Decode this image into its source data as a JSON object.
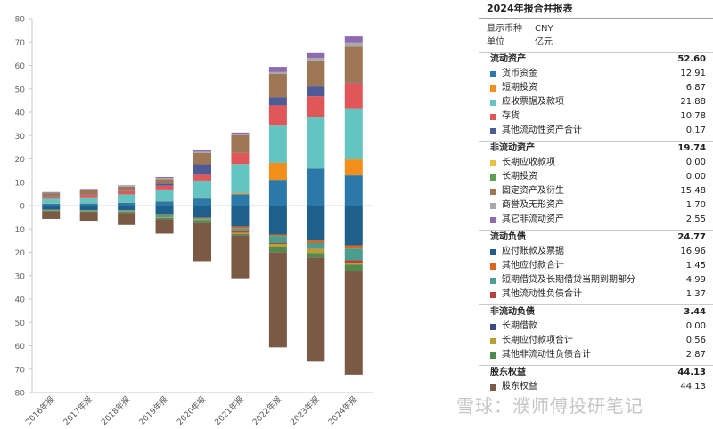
{
  "chart_data": {
    "type": "bar",
    "stacked": true,
    "diverging": true,
    "categories": [
      "2016年报",
      "2017年报",
      "2018年报",
      "2019年报",
      "2020年报",
      "2021年报",
      "2022年报",
      "2023年报",
      "2024年报"
    ],
    "ylim": [
      -80,
      80
    ],
    "yticks": [
      80,
      70,
      60,
      50,
      40,
      30,
      20,
      10,
      0,
      -10,
      -20,
      -30,
      -40,
      -50,
      -60,
      -70,
      -80
    ],
    "ytick_labels": [
      "80",
      "70",
      "60",
      "50",
      "40",
      "30",
      "20",
      "10",
      "0",
      "10",
      "20",
      "30",
      "40",
      "50",
      "60",
      "70",
      "80"
    ],
    "grid": false,
    "positive_series": [
      {
        "name": "货币资金",
        "color": "#2b79a8",
        "values": [
          0.8,
          0.9,
          1.2,
          1.8,
          3.0,
          4.8,
          11.0,
          15.9,
          12.91
        ]
      },
      {
        "name": "短期投资",
        "color": "#f28e1c",
        "values": [
          0.1,
          0.1,
          0.1,
          0.1,
          0.2,
          0.5,
          7.3,
          0,
          6.87
        ]
      },
      {
        "name": "应收票据及款项",
        "color": "#63c4c1",
        "values": [
          2.0,
          2.5,
          3.5,
          5.0,
          7.5,
          12.5,
          15.9,
          22.0,
          21.88
        ]
      },
      {
        "name": "存货",
        "color": "#e15759",
        "values": [
          0.8,
          1.0,
          1.4,
          1.6,
          2.5,
          4.7,
          8.7,
          8.9,
          10.78
        ]
      },
      {
        "name": "其他流动性资产合计",
        "color": "#4e5a95",
        "values": [
          0.2,
          0.2,
          0.2,
          0.8,
          4.5,
          0.1,
          3.5,
          4.2,
          0.17
        ]
      },
      {
        "name": "长期应收款项",
        "color": "#e8c040",
        "values": [
          0,
          0,
          0,
          0,
          0,
          0,
          0,
          0,
          0
        ]
      },
      {
        "name": "长期投资",
        "color": "#59a14f",
        "values": [
          0,
          0,
          0,
          0,
          0,
          0,
          0,
          0,
          0
        ]
      },
      {
        "name": "固定资产及衍生",
        "color": "#9c7655",
        "values": [
          1.4,
          1.8,
          1.6,
          2.0,
          4.8,
          7.6,
          10.0,
          11.2,
          15.48
        ]
      },
      {
        "name": "商誉及无形资产",
        "color": "#a8a8a8",
        "values": [
          0.2,
          0.3,
          0.3,
          0.5,
          0.6,
          0.5,
          0.8,
          1.0,
          1.7
        ]
      },
      {
        "name": "其它非流动资产",
        "color": "#8e6bb0",
        "values": [
          0.3,
          0.3,
          0.3,
          0.4,
          0.7,
          0.6,
          2.2,
          2.4,
          2.55
        ]
      }
    ],
    "negative_series": [
      {
        "name": "应付账款及票据",
        "color": "#1f5f8b",
        "values": [
          1.8,
          1.9,
          2.0,
          3.8,
          5.2,
          9.0,
          12.5,
          15.0,
          16.96
        ]
      },
      {
        "name": "其他应付款合计",
        "color": "#d9681e",
        "values": [
          0.1,
          0.1,
          0.1,
          0.2,
          0.3,
          0.8,
          0.6,
          1.0,
          1.45
        ]
      },
      {
        "name": "短期借贷及长期借贷当期到期部分",
        "color": "#4a9e90",
        "values": [
          0.2,
          0.3,
          0.5,
          1.0,
          0.5,
          0.8,
          2.9,
          2.4,
          4.99
        ]
      },
      {
        "name": "其他流动性负债合计",
        "color": "#b84040",
        "values": [
          0,
          0,
          0,
          0,
          0,
          1.0,
          0.4,
          0.2,
          1.37
        ]
      },
      {
        "name": "长期借款",
        "color": "#3b4a80",
        "values": [
          0,
          0,
          0,
          0,
          0,
          0,
          0,
          0,
          0
        ]
      },
      {
        "name": "长期应付款项合计",
        "color": "#b8a030",
        "values": [
          0.1,
          0.1,
          0.1,
          0.2,
          0.2,
          0.6,
          1.4,
          1.7,
          0.56
        ]
      },
      {
        "name": "其他非流动性负债合计",
        "color": "#4f8a4f",
        "values": [
          0.3,
          0.3,
          0.4,
          0.6,
          0.9,
          0.6,
          2.1,
          1.9,
          2.87
        ]
      },
      {
        "name": "股东权益",
        "color": "#7a5a44",
        "values": [
          3.2,
          3.8,
          5.2,
          6.2,
          16.7,
          18.3,
          40.8,
          44.6,
          44.13
        ]
      }
    ]
  },
  "panel": {
    "title": "2024年报合并报表",
    "currency_label": "显示币种",
    "currency_value": "CNY",
    "unit_label": "单位",
    "unit_value": "亿元",
    "groups": [
      {
        "label": "流动资产",
        "value": "52.60",
        "items": [
          {
            "name": "货币资金",
            "value": "12.91",
            "color": "#2b79a8"
          },
          {
            "name": "短期投资",
            "value": "6.87",
            "color": "#f28e1c"
          },
          {
            "name": "应收票据及款项",
            "value": "21.88",
            "color": "#63c4c1"
          },
          {
            "name": "存货",
            "value": "10.78",
            "color": "#e15759"
          },
          {
            "name": "其他流动性资产合计",
            "value": "0.17",
            "color": "#4e5a95"
          }
        ]
      },
      {
        "label": "非流动资产",
        "value": "19.74",
        "items": [
          {
            "name": "长期应收款项",
            "value": "0.00",
            "color": "#e8c040"
          },
          {
            "name": "长期投资",
            "value": "0.00",
            "color": "#59a14f"
          },
          {
            "name": "固定资产及衍生",
            "value": "15.48",
            "color": "#9c7655"
          },
          {
            "name": "商誉及无形资产",
            "value": "1.70",
            "color": "#a8a8a8"
          },
          {
            "name": "其它非流动资产",
            "value": "2.55",
            "color": "#8e6bb0"
          }
        ]
      },
      {
        "label": "流动负债",
        "value": "24.77",
        "items": [
          {
            "name": "应付账款及票据",
            "value": "16.96",
            "color": "#1f5f8b"
          },
          {
            "name": "其他应付款合计",
            "value": "1.45",
            "color": "#d9681e"
          },
          {
            "name": "短期借贷及长期借贷当期到期部分",
            "value": "4.99",
            "color": "#4a9e90"
          },
          {
            "name": "其他流动性负债合计",
            "value": "1.37",
            "color": "#b84040"
          }
        ]
      },
      {
        "label": "非流动负债",
        "value": "3.44",
        "items": [
          {
            "name": "长期借款",
            "value": "0.00",
            "color": "#3b4a80"
          },
          {
            "name": "长期应付款项合计",
            "value": "0.56",
            "color": "#b8a030"
          },
          {
            "name": "其他非流动性负债合计",
            "value": "2.87",
            "color": "#4f8a4f"
          }
        ]
      },
      {
        "label": "股东权益",
        "value": "44.13",
        "items": [
          {
            "name": "股东权益",
            "value": "44.13",
            "color": "#7a5a44"
          }
        ]
      }
    ]
  },
  "watermark": "雪球：濮师傅投研笔记"
}
